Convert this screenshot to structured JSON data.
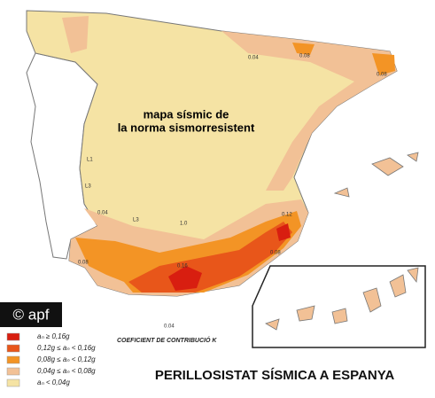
{
  "map_title": [
    "mapa sísmic  de",
    "la norma sismorresistent"
  ],
  "copyright": "© apf",
  "legend": {
    "items": [
      {
        "label": "aₙ ≥  0,16g",
        "color": "#d81e10"
      },
      {
        "label": "0,12g  ≤  aₙ  <  0,16g",
        "color": "#e8561a"
      },
      {
        "label": "0,08g  ≤  aₙ  <  0,12g",
        "color": "#f39425"
      },
      {
        "label": "0,04g  ≤  aₙ  <  0,08g",
        "color": "#f2c196"
      },
      {
        "label": "aₙ  <  0,04g",
        "color": "#f5e3a4"
      }
    ],
    "coefficient_label": "COEFICIENT DE CONTRIBUCIÓ   K"
  },
  "contour_labels": [
    "0.04",
    "0.08",
    "0.08",
    "0.04",
    "0.08",
    "0.12",
    "0.16",
    "0.08",
    "0.04",
    "L1",
    "L3",
    "L3",
    "1.0"
  ],
  "caption": "PERILLOSISTAT SÍSMICA A ESPANYA"
}
